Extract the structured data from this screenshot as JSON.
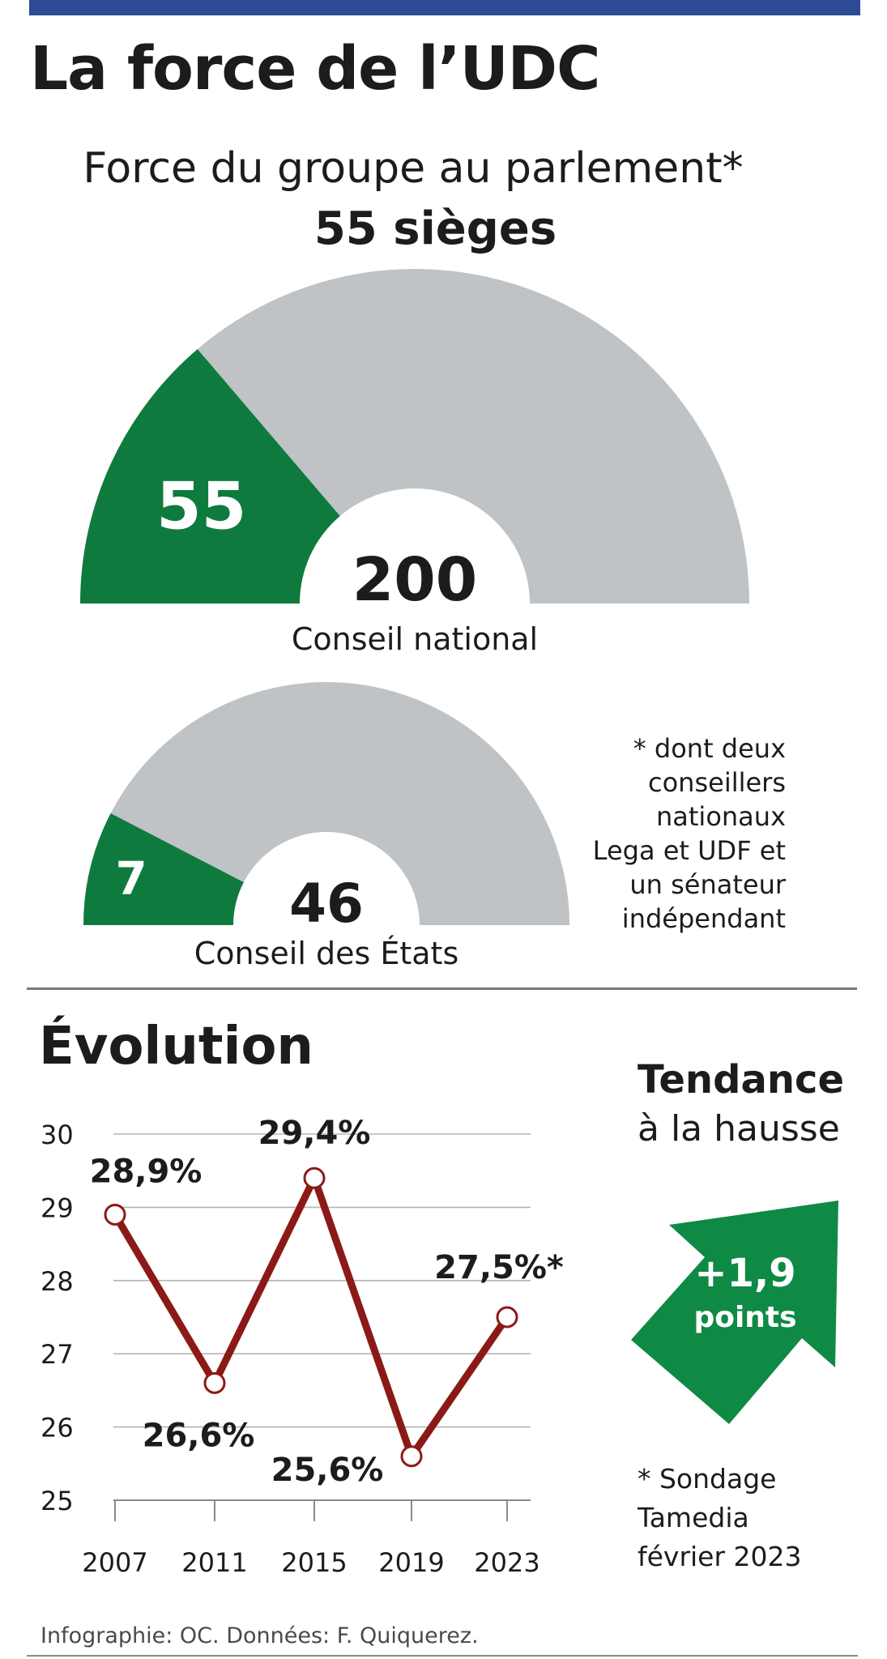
{
  "header": {
    "title": "La force de l’UDC"
  },
  "parliament": {
    "subtitle": "Force du groupe au parlement*",
    "seats_label": "55 sièges"
  },
  "colors": {
    "brand_bar": "#2c4a96",
    "party": "#0f7a3e",
    "other": "#bfc3c6",
    "line": "#8b1a17",
    "arrow": "#0f8a45"
  },
  "note": {
    "lines": [
      "* dont deux",
      "conseillers",
      "nationaux",
      "Lega et UDF et",
      "un sénateur",
      "indépendant"
    ]
  },
  "chart_data": [
    {
      "type": "pie",
      "title": "Conseil national",
      "shape": "semicircle",
      "total": 200,
      "total_label": "200",
      "slices": [
        {
          "name": "UDC",
          "value": 55,
          "label": "55"
        },
        {
          "name": "autres",
          "value": 145
        }
      ]
    },
    {
      "type": "pie",
      "title": "Conseil des États",
      "shape": "semicircle",
      "total": 46,
      "total_label": "46",
      "slices": [
        {
          "name": "UDC",
          "value": 7,
          "label": "7"
        },
        {
          "name": "autres",
          "value": 39
        }
      ]
    },
    {
      "type": "line",
      "title": "Évolution",
      "categories": [
        "2007",
        "2011",
        "2015",
        "2019",
        "2023"
      ],
      "series": [
        {
          "name": "UDC",
          "values": [
            28.9,
            26.6,
            29.4,
            25.6,
            27.5
          ],
          "labels": [
            "28,9%",
            "26,6%",
            "29,4%",
            "25,6%",
            "27,5%*"
          ]
        }
      ],
      "ylim": [
        25,
        30
      ],
      "yticks": [
        "25",
        "26",
        "27",
        "28",
        "29",
        "30"
      ],
      "grid": true,
      "xlabel": "",
      "ylabel": ""
    }
  ],
  "trend": {
    "title": "Tendance",
    "subtitle": "à la hausse",
    "value": "+1,9",
    "unit": "points"
  },
  "survey_note": {
    "lines": [
      "* Sondage",
      "Tamedia",
      "février 2023"
    ]
  },
  "source": "Infographie: OC. Données: F. Quiquerez."
}
